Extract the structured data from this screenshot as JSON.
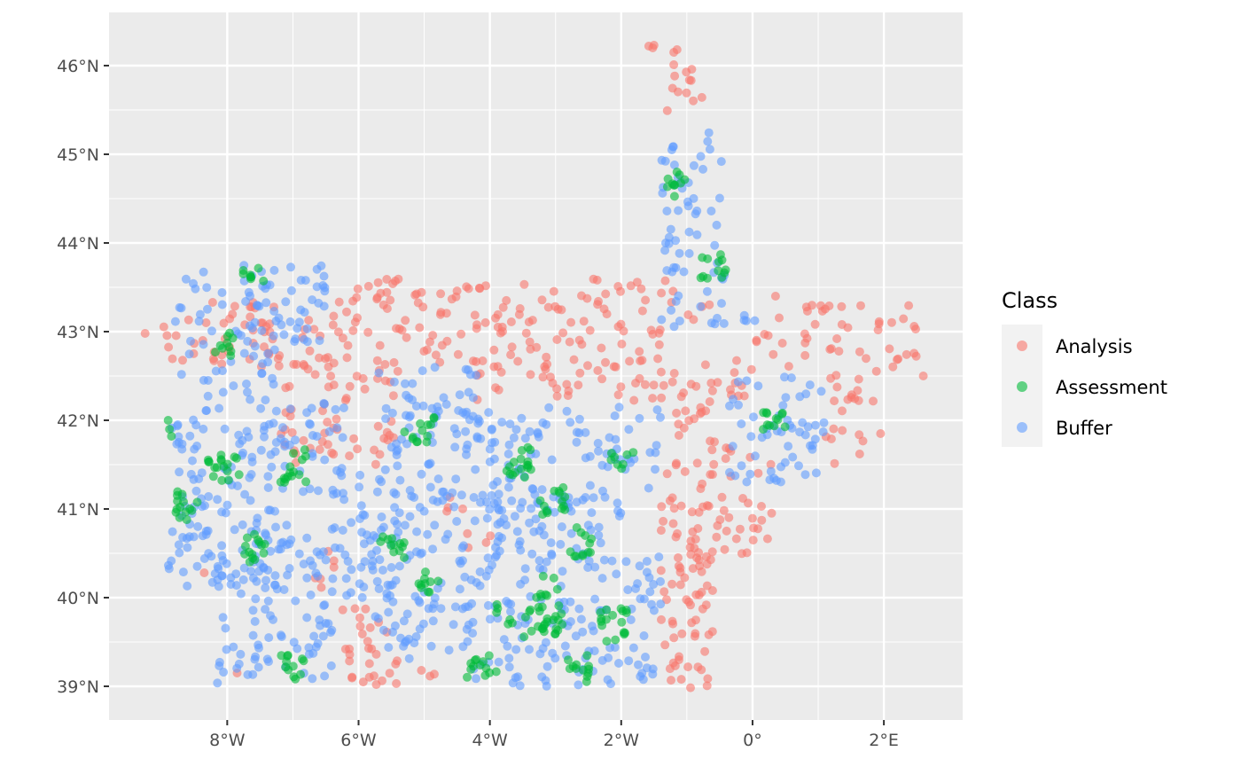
{
  "chart_data": {
    "type": "scatter",
    "title": "",
    "xlabel": "",
    "ylabel": "",
    "xlim": [
      -9.8,
      3.2
    ],
    "ylim": [
      38.62,
      46.6
    ],
    "x_ticks": [
      {
        "value": -8,
        "label": "8°W"
      },
      {
        "value": -6,
        "label": "6°W"
      },
      {
        "value": -4,
        "label": "4°W"
      },
      {
        "value": -2,
        "label": "2°W"
      },
      {
        "value": 0,
        "label": "0°"
      },
      {
        "value": 2,
        "label": "2°E"
      }
    ],
    "y_ticks": [
      {
        "value": 39,
        "label": "39°N"
      },
      {
        "value": 40,
        "label": "40°N"
      },
      {
        "value": 41,
        "label": "41°N"
      },
      {
        "value": 42,
        "label": "42°N"
      },
      {
        "value": 43,
        "label": "43°N"
      },
      {
        "value": 44,
        "label": "44°N"
      },
      {
        "value": 45,
        "label": "45°N"
      },
      {
        "value": 46,
        "label": "46°N"
      }
    ],
    "grid": true,
    "legend": {
      "title": "Class",
      "position": "right",
      "entries": [
        {
          "label": "Analysis",
          "color": "#F8766D"
        },
        {
          "label": "Assessment",
          "color": "#00BA38"
        },
        {
          "label": "Buffer",
          "color": "#619CFF"
        }
      ]
    },
    "series": [
      {
        "name": "Analysis",
        "color": "#F8766D",
        "regions": [
          {
            "x": [
              -9.2,
              -6.3
            ],
            "y": [
              42.6,
              43.35
            ],
            "density": 0.9
          },
          {
            "x": [
              -6.3,
              -1.4
            ],
            "y": [
              42.65,
              43.6
            ],
            "density": 0.9
          },
          {
            "x": [
              -7.2,
              -5.4
            ],
            "y": [
              41.5,
              42.65
            ],
            "density": 0.9
          },
          {
            "x": [
              -4.2,
              0.0
            ],
            "y": [
              42.2,
              42.7
            ],
            "density": 0.9
          },
          {
            "x": [
              -1.4,
              -0.6
            ],
            "y": [
              38.98,
              42.2
            ],
            "density": 1.2
          },
          {
            "x": [
              -0.6,
              0.3
            ],
            "y": [
              40.4,
              41.8
            ],
            "density": 0.8
          },
          {
            "x": [
              0.0,
              2.5
            ],
            "y": [
              42.6,
              43.3
            ],
            "density": 0.8
          },
          {
            "x": [
              1.1,
              2.0
            ],
            "y": [
              41.5,
              42.6
            ],
            "density": 0.7
          },
          {
            "x": [
              -1.4,
              -0.6
            ],
            "y": [
              43.1,
              43.6
            ],
            "density": 0.6
          },
          {
            "x": [
              -1.35,
              -0.75
            ],
            "y": [
              45.4,
              46.2
            ],
            "density": 0.8
          },
          {
            "x": [
              -6.3,
              -5.5
            ],
            "y": [
              39.0,
              39.9
            ],
            "density": 1.1
          },
          {
            "x": [
              -5.5,
              -4.8
            ],
            "y": [
              39.0,
              39.3
            ],
            "density": 0.9
          },
          {
            "x": [
              -6.7,
              -6.3
            ],
            "y": [
              40.0,
              40.8
            ],
            "density": 0.6
          },
          {
            "x": [
              -4.35,
              -3.95
            ],
            "y": [
              40.35,
              40.75
            ],
            "density": 0.7
          },
          {
            "x": [
              -4.75,
              -4.35
            ],
            "y": [
              40.9,
              41.2
            ],
            "density": 0.6
          }
        ],
        "points": [
          {
            "x": -1.58,
            "y": 46.22
          },
          {
            "x": -1.52,
            "y": 46.2
          },
          {
            "x": -1.5,
            "y": 46.23
          },
          {
            "x": -1.2,
            "y": 46.15
          },
          {
            "x": -1.15,
            "y": 46.18
          },
          {
            "x": -9.25,
            "y": 42.98
          },
          {
            "x": -8.35,
            "y": 40.28
          },
          {
            "x": -7.85,
            "y": 39.15
          },
          {
            "x": 0.35,
            "y": 43.4
          },
          {
            "x": 2.6,
            "y": 42.5
          },
          {
            "x": 1.95,
            "y": 41.85
          }
        ]
      },
      {
        "name": "Buffer",
        "color": "#619CFF",
        "regions": [
          {
            "x": [
              -8.8,
              -6.5
            ],
            "y": [
              42.7,
              43.75
            ],
            "density": 1.0
          },
          {
            "x": [
              -8.9,
              -7.2
            ],
            "y": [
              40.1,
              42.7
            ],
            "density": 1.0
          },
          {
            "x": [
              -7.3,
              -6.2
            ],
            "y": [
              41.0,
              42.2
            ],
            "density": 0.9
          },
          {
            "x": [
              -8.2,
              -7.6
            ],
            "y": [
              39.0,
              40.6
            ],
            "density": 0.8
          },
          {
            "x": [
              -7.6,
              -6.4
            ],
            "y": [
              39.0,
              41.0
            ],
            "density": 1.0
          },
          {
            "x": [
              -6.4,
              -5.4
            ],
            "y": [
              40.0,
              41.4
            ],
            "density": 1.0
          },
          {
            "x": [
              -5.7,
              -4.2
            ],
            "y": [
              41.3,
              42.6
            ],
            "density": 1.0
          },
          {
            "x": [
              -5.8,
              -4.4
            ],
            "y": [
              39.3,
              41.3
            ],
            "density": 1.0
          },
          {
            "x": [
              -4.4,
              -1.4
            ],
            "y": [
              39.0,
              42.15
            ],
            "density": 1.0
          },
          {
            "x": [
              -1.4,
              -0.4
            ],
            "y": [
              43.05,
              45.25
            ],
            "density": 0.9
          },
          {
            "x": [
              -0.4,
              0.1
            ],
            "y": [
              43.05,
              43.2
            ],
            "density": 0.6
          },
          {
            "x": [
              -0.4,
              1.1
            ],
            "y": [
              41.3,
              42.6
            ],
            "density": 0.9
          }
        ],
        "points": []
      },
      {
        "name": "Assessment",
        "color": "#00BA38",
        "regions": [
          {
            "x": [
              -8.2,
              -7.9
            ],
            "y": [
              42.7,
              43.05
            ],
            "density": 3.0
          },
          {
            "x": [
              -7.85,
              -7.4
            ],
            "y": [
              43.55,
              43.78
            ],
            "density": 2.5
          },
          {
            "x": [
              -8.3,
              -7.8
            ],
            "y": [
              41.3,
              41.65
            ],
            "density": 3.0
          },
          {
            "x": [
              -7.2,
              -6.8
            ],
            "y": [
              41.3,
              41.7
            ],
            "density": 3.0
          },
          {
            "x": [
              -8.8,
              -8.45
            ],
            "y": [
              40.85,
              41.25
            ],
            "density": 3.0
          },
          {
            "x": [
              -7.75,
              -7.35
            ],
            "y": [
              40.4,
              40.75
            ],
            "density": 3.0
          },
          {
            "x": [
              -7.2,
              -6.8
            ],
            "y": [
              39.05,
              39.35
            ],
            "density": 3.0
          },
          {
            "x": [
              -5.3,
              -4.85
            ],
            "y": [
              41.75,
              42.05
            ],
            "density": 3.0
          },
          {
            "x": [
              -5.7,
              -5.3
            ],
            "y": [
              40.45,
              40.75
            ],
            "density": 3.0
          },
          {
            "x": [
              -5.1,
              -4.75
            ],
            "y": [
              40.05,
              40.35
            ],
            "density": 3.0
          },
          {
            "x": [
              -3.8,
              -3.3
            ],
            "y": [
              41.35,
              41.7
            ],
            "density": 3.0
          },
          {
            "x": [
              -3.25,
              -2.85
            ],
            "y": [
              40.9,
              41.25
            ],
            "density": 3.0
          },
          {
            "x": [
              -2.8,
              -2.45
            ],
            "y": [
              40.45,
              40.8
            ],
            "density": 3.0
          },
          {
            "x": [
              -2.2,
              -1.8
            ],
            "y": [
              41.45,
              41.65
            ],
            "density": 3.0
          },
          {
            "x": [
              -3.9,
              -2.9
            ],
            "y": [
              39.55,
              39.95
            ],
            "density": 2.5
          },
          {
            "x": [
              -3.3,
              -2.95
            ],
            "y": [
              39.95,
              40.25
            ],
            "density": 2.5
          },
          {
            "x": [
              -2.35,
              -1.9
            ],
            "y": [
              39.5,
              39.9
            ],
            "density": 3.0
          },
          {
            "x": [
              -4.35,
              -3.9
            ],
            "y": [
              39.05,
              39.35
            ],
            "density": 3.0
          },
          {
            "x": [
              -2.85,
              -2.45
            ],
            "y": [
              39.05,
              39.35
            ],
            "density": 3.0
          },
          {
            "x": [
              -1.3,
              -1.0
            ],
            "y": [
              44.5,
              44.85
            ],
            "density": 3.0
          },
          {
            "x": [
              -0.8,
              -0.4
            ],
            "y": [
              43.6,
              43.9
            ],
            "density": 3.0
          },
          {
            "x": [
              0.15,
              0.55
            ],
            "y": [
              41.8,
              42.1
            ],
            "density": 3.0
          }
        ],
        "points": [
          {
            "x": -8.9,
            "y": 42.0
          },
          {
            "x": -8.85,
            "y": 41.82
          },
          {
            "x": -8.88,
            "y": 41.9
          }
        ]
      }
    ]
  }
}
